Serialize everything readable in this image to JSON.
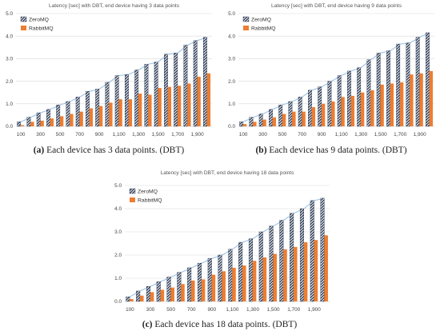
{
  "chart_data": [
    {
      "type": "bar",
      "title": "Latency [sec] with DBT, end device having 3 data points",
      "caption_label": "(a)",
      "caption_text": "Each device has 3 data points. (DBT)",
      "ylim": [
        0,
        5
      ],
      "yticks": [
        "0.0",
        "1.0",
        "2.0",
        "3.0",
        "4.0",
        "5.0"
      ],
      "xtick_labels": [
        "100",
        "300",
        "500",
        "700",
        "900",
        "1,100",
        "1,300",
        "1,500",
        "1,700",
        "1,900"
      ],
      "categories": [
        100,
        200,
        300,
        400,
        500,
        600,
        700,
        800,
        900,
        1000,
        1100,
        1200,
        1300,
        1400,
        1500,
        1600,
        1700,
        1800,
        1900,
        2000
      ],
      "grid": true,
      "legend": "top-left",
      "series": [
        {
          "name": "ZeroMQ",
          "values": [
            0.2,
            0.4,
            0.6,
            0.75,
            0.95,
            1.1,
            1.3,
            1.55,
            1.65,
            1.95,
            2.25,
            2.3,
            2.5,
            2.75,
            2.85,
            3.2,
            3.25,
            3.6,
            3.8,
            3.95
          ]
        },
        {
          "name": "RabbitMQ",
          "values": [
            0.05,
            0.2,
            0.25,
            0.35,
            0.45,
            0.55,
            0.65,
            0.8,
            0.9,
            1.05,
            1.2,
            1.2,
            1.45,
            1.4,
            1.7,
            1.75,
            1.8,
            1.9,
            2.2,
            2.35
          ]
        }
      ]
    },
    {
      "type": "bar",
      "title": "Latency [sec] with DBT, end device having 9 data points",
      "caption_label": "(b)",
      "caption_text": "Each device has 9 data points. (DBT)",
      "ylim": [
        0,
        5
      ],
      "yticks": [
        "0.0",
        "1.0",
        "2.0",
        "3.0",
        "4.0",
        "5.0"
      ],
      "xtick_labels": [
        "100",
        "300",
        "500",
        "700",
        "900",
        "1,100",
        "1,300",
        "1,500",
        "1,700",
        "1,900"
      ],
      "categories": [
        100,
        200,
        300,
        400,
        500,
        600,
        700,
        800,
        900,
        1000,
        1100,
        1200,
        1300,
        1400,
        1500,
        1600,
        1700,
        1800,
        1900,
        2000
      ],
      "grid": true,
      "legend": "top-left",
      "series": [
        {
          "name": "ZeroMQ",
          "values": [
            0.2,
            0.4,
            0.55,
            0.75,
            0.95,
            1.1,
            1.3,
            1.6,
            1.75,
            2.0,
            2.25,
            2.45,
            2.6,
            2.95,
            3.25,
            3.35,
            3.65,
            3.7,
            3.95,
            4.15
          ]
        },
        {
          "name": "RabbitMQ",
          "values": [
            0.1,
            0.2,
            0.3,
            0.4,
            0.55,
            0.65,
            0.65,
            0.85,
            1.0,
            1.1,
            1.3,
            1.35,
            1.5,
            1.6,
            1.85,
            1.9,
            1.95,
            2.3,
            2.35,
            2.45
          ]
        }
      ]
    },
    {
      "type": "bar",
      "title": "Latency [sec] with DBT, end device having 18 data points",
      "caption_label": "(c)",
      "caption_text": "Each device has 18 data points. (DBT)",
      "ylim": [
        0,
        5
      ],
      "yticks": [
        "0.0",
        "1.0",
        "2.0",
        "3.0",
        "4.0",
        "5.0"
      ],
      "xtick_labels": [
        "100",
        "300",
        "500",
        "700",
        "900",
        "1,100",
        "1,300",
        "1,500",
        "1,700",
        "1,900"
      ],
      "categories": [
        100,
        200,
        300,
        400,
        500,
        600,
        700,
        800,
        900,
        1000,
        1100,
        1200,
        1300,
        1400,
        1500,
        1600,
        1700,
        1800,
        1900,
        2000
      ],
      "grid": true,
      "legend": "top-left",
      "series": [
        {
          "name": "ZeroMQ",
          "values": [
            0.2,
            0.45,
            0.65,
            0.85,
            1.05,
            1.25,
            1.45,
            1.65,
            1.85,
            2.0,
            2.25,
            2.55,
            2.7,
            3.0,
            3.25,
            3.5,
            3.8,
            4.0,
            4.35,
            4.45
          ]
        },
        {
          "name": "RabbitMQ",
          "values": [
            0.1,
            0.25,
            0.4,
            0.5,
            0.6,
            0.75,
            0.9,
            0.95,
            1.15,
            1.3,
            1.45,
            1.55,
            1.75,
            1.9,
            2.05,
            2.25,
            2.35,
            2.55,
            2.65,
            2.85
          ]
        }
      ]
    }
  ],
  "colors": {
    "zeromq_stripe": "#1f2f4a",
    "rabbitmq": "#ed7d31",
    "trend": "#9dc3e6",
    "grid": "#d9d9d9",
    "axis": "#bfbfbf"
  }
}
